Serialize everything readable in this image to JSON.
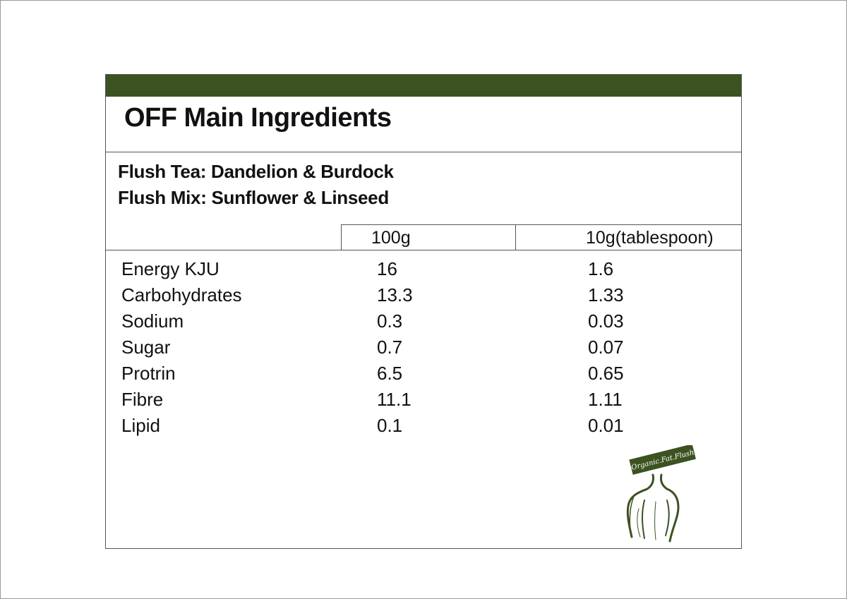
{
  "title": "OFF Main Ingredients",
  "subtitle_lines": [
    "Flush Tea: Dandelion & Burdock",
    "Flush Mix: Sunflower & Linseed"
  ],
  "columns": [
    "100g",
    "10g(tablespoon)"
  ],
  "rows": [
    {
      "name": "Energy KJU",
      "per100g": "16",
      "per10g": "1.6"
    },
    {
      "name": "Carbohydrates",
      "per100g": "13.3",
      "per10g": "1.33"
    },
    {
      "name": "Sodium",
      "per100g": "0.3",
      "per10g": "0.03"
    },
    {
      "name": "Sugar",
      "per100g": "0.7",
      "per10g": "0.07"
    },
    {
      "name": "Protrin",
      "per100g": "6.5",
      "per10g": "0.65"
    },
    {
      "name": "Fibre",
      "per100g": "11.1",
      "per10g": "1.11"
    },
    {
      "name": "Lipid",
      "per100g": "0.1",
      "per10g": "0.01"
    }
  ],
  "logo": {
    "text": "Organic.Fat.Flush",
    "icon": "body-silhouette-icon"
  },
  "colors": {
    "accent": "#3b5221",
    "border": "#555555",
    "text": "#111111"
  }
}
